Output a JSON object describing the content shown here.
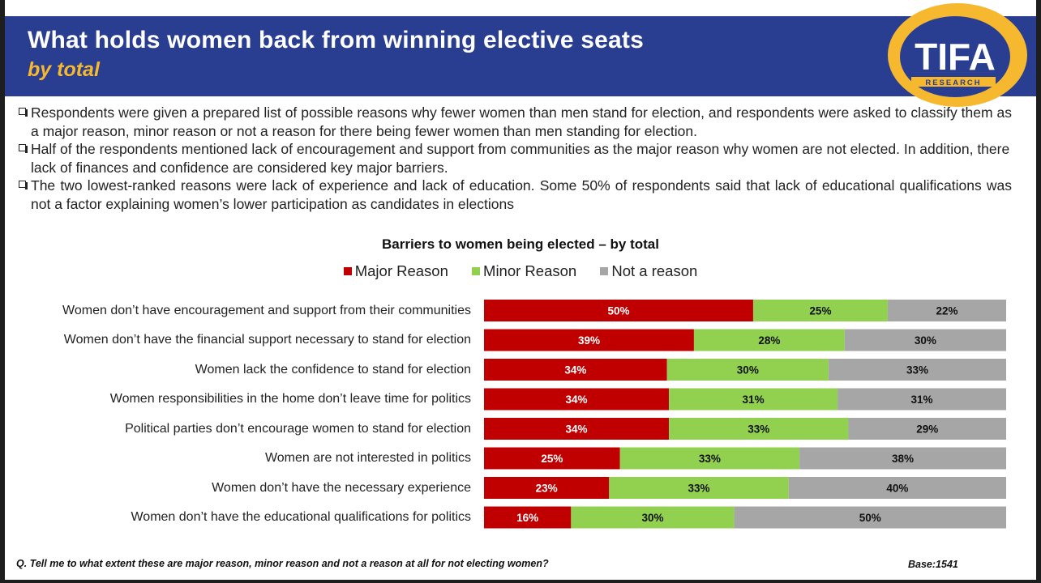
{
  "header": {
    "title": "What holds women back from winning elective seats",
    "subtitle": "by total"
  },
  "logo": {
    "text": "TIFA",
    "subtext": "RESEARCH"
  },
  "bullets": [
    "Respondents were given a prepared list of possible reasons why fewer women than men stand for election, and respondents were asked to classify them as a major reason, minor reason or not a reason for there being fewer women than men standing for election.",
    "Half of the respondents mentioned  lack of encouragement and support from communities as the major reason why women are not elected. In addition, there lack of finances and confidence  are considered key major barriers.",
    "The two lowest-ranked reasons were lack of experience and lack of education. Some 50% of respondents said that lack of educational qualifications was not a factor explaining women’s lower participation as candidates in elections"
  ],
  "chart_data": {
    "type": "bar",
    "orientation": "horizontal",
    "stacked": true,
    "title": "Barriers to women being elected  – by total",
    "legend_position": "top",
    "categories": [
      "Women don’t have encouragement and support from their communities",
      "Women don’t have the financial support necessary to stand for election",
      "Women lack the confidence to stand for election",
      "Women  responsibilities in the home don’t leave time for politics",
      "Political parties don’t encourage women to stand for election",
      "Women are not interested in politics",
      "Women don’t have the necessary experience",
      "Women don’t have the educational qualifications for politics"
    ],
    "series": [
      {
        "name": "Major Reason",
        "color": "#c00000",
        "label_color": "#ffffff",
        "values": [
          50,
          39,
          34,
          34,
          34,
          25,
          23,
          16
        ]
      },
      {
        "name": "Minor Reason",
        "color": "#92d050",
        "label_color": "#111111",
        "values": [
          25,
          28,
          30,
          31,
          33,
          33,
          33,
          30
        ]
      },
      {
        "name": "Not a reason",
        "color": "#a6a6a6",
        "label_color": "#111111",
        "values": [
          22,
          30,
          33,
          31,
          29,
          38,
          40,
          50
        ]
      }
    ],
    "value_suffix": "%",
    "grid": false
  },
  "footnote": "Q. Tell me to what extent these are major reason, minor reason and not a reason at all  for not electing women?",
  "base": "Base:1541",
  "colors": {
    "header_bg": "#2a3e91",
    "subtitle": "#f5b82e",
    "logo_ring": "#f5b82e"
  }
}
